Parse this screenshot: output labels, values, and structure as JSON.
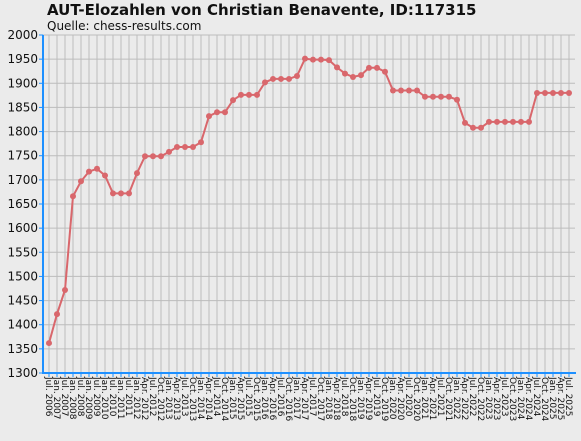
{
  "chart_data": {
    "type": "line",
    "title": "AUT-Elozahlen von Christian Benavente, ID:117315",
    "subtitle": "Quelle: chess-results.com",
    "xlabel": "",
    "ylabel": "",
    "ylim": [
      1300,
      2000
    ],
    "yticks": [
      1300,
      1350,
      1400,
      1450,
      1500,
      1550,
      1600,
      1650,
      1700,
      1750,
      1800,
      1850,
      1900,
      1950,
      2000
    ],
    "grid": true,
    "legend": "none",
    "line_color": "#d9676c",
    "x": [
      "Jul. 2006",
      "Jan. 2007",
      "Jul. 2007",
      "Jan. 2008",
      "Jul. 2008",
      "Jan. 2009",
      "Jul. 2009",
      "Jan. 2010",
      "Jul. 2010",
      "Jan. 2011",
      "Jul. 2011",
      "Jan. 2012",
      "Apr. 2012",
      "Jul. 2012",
      "Oct. 2012",
      "Jan. 2013",
      "Apr. 2013",
      "Jul. 2013",
      "Oct. 2013",
      "Jan. 2014",
      "Apr. 2014",
      "Jul. 2014",
      "Oct. 2014",
      "Jan. 2015",
      "Apr. 2015",
      "Jul. 2015",
      "Oct. 2015",
      "Jan. 2016",
      "Apr. 2016",
      "Jul. 2016",
      "Oct. 2016",
      "Jan. 2017",
      "Apr. 2017",
      "Jul. 2017",
      "Oct. 2017",
      "Jan. 2018",
      "Apr. 2018",
      "Jul. 2018",
      "Oct. 2018",
      "Jan. 2019",
      "Apr. 2019",
      "Jul. 2019",
      "Oct. 2019",
      "Jan. 2020",
      "Apr. 2020",
      "Jul. 2020",
      "Oct. 2020",
      "Jan. 2021",
      "Apr. 2021",
      "Jul. 2021",
      "Oct. 2021",
      "Jan. 2022",
      "Apr. 2022",
      "Jul. 2022",
      "Oct. 2022",
      "Jan. 2023",
      "Apr. 2023",
      "Jul. 2023",
      "Oct. 2023",
      "Jan. 2024",
      "Apr. 2024",
      "Jul. 2024",
      "Oct. 2024",
      "Jan. 2025",
      "Apr. 2025",
      "Jul. 2025"
    ],
    "values": [
      1362,
      1422,
      1472,
      1666,
      1697,
      1717,
      1723,
      1709,
      1672,
      1672,
      1672,
      1714,
      1749,
      1749,
      1749,
      1758,
      1768,
      1768,
      1768,
      1778,
      1832,
      1840,
      1840,
      1865,
      1876,
      1876,
      1876,
      1902,
      1909,
      1909,
      1909,
      1915,
      1951,
      1949,
      1949,
      1948,
      1933,
      1920,
      1913,
      1917,
      1932,
      1932,
      1924,
      1885,
      1885,
      1885,
      1885,
      1872,
      1872,
      1872,
      1872,
      1866,
      1818,
      1808,
      1808,
      1820,
      1820,
      1820,
      1820,
      1820,
      1820,
      1880,
      1880,
      1880,
      1880,
      1880
    ]
  }
}
